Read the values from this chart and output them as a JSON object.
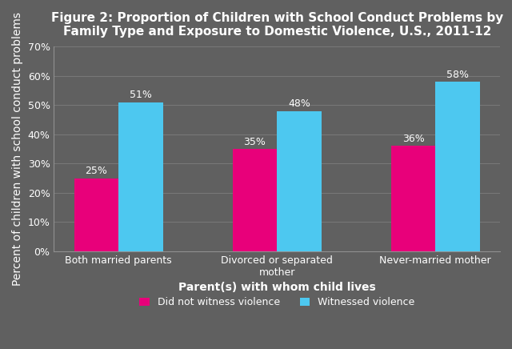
{
  "title": "Figure 2: Proportion of Children with School Conduct Problems by\nFamily Type and Exposure to Domestic Violence, U.S., 2011-12",
  "categories": [
    "Both married parents",
    "Divorced or separated\nmother",
    "Never-married mother"
  ],
  "no_witness": [
    25,
    35,
    36
  ],
  "witnessed": [
    51,
    48,
    58
  ],
  "no_witness_color": "#E8007A",
  "witnessed_color": "#4DC8F0",
  "xlabel": "Parent(s) with whom child lives",
  "ylabel": "Percent of children with school conduct problems",
  "ylim": [
    0,
    70
  ],
  "yticks": [
    0,
    10,
    20,
    30,
    40,
    50,
    60,
    70
  ],
  "ytick_labels": [
    "0%",
    "10%",
    "20%",
    "30%",
    "40%",
    "50%",
    "60%",
    "70%"
  ],
  "legend_no_witness": "Did not witness violence",
  "legend_witnessed": "Witnessed violence",
  "background_color": "#606060",
  "title_fontsize": 11,
  "axis_label_fontsize": 10,
  "tick_fontsize": 9,
  "bar_label_fontsize": 9,
  "legend_fontsize": 9,
  "bar_width": 0.28,
  "text_color": "#FFFFFF",
  "grid_color": "#808080",
  "spine_color": "#909090"
}
